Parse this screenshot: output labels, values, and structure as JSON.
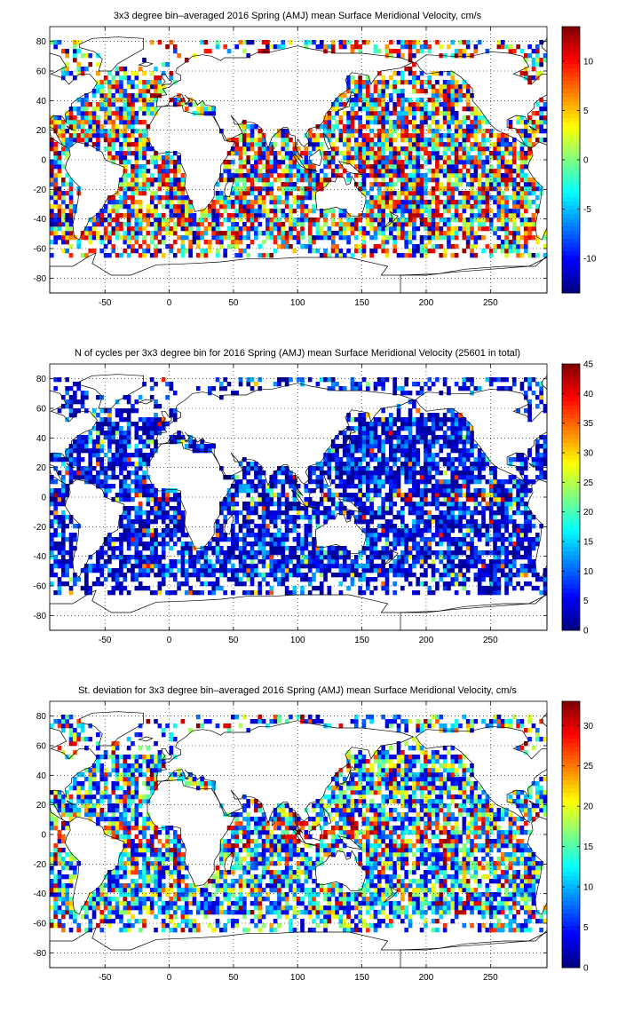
{
  "chart_data": [
    {
      "type": "heatmap",
      "title": "3x3 degree bin–averaged 2016 Spring (AMJ) mean Surface Meridional Velocity, cm/s",
      "xlim": [
        -93,
        294
      ],
      "ylim": [
        -90,
        90
      ],
      "x_ticks": [
        "-50",
        "0",
        "50",
        "100",
        "150",
        "200",
        "250"
      ],
      "x_tick_values": [
        -50,
        0,
        50,
        100,
        150,
        200,
        250
      ],
      "y_ticks": [
        "80",
        "60",
        "40",
        "20",
        "0",
        "-20",
        "-40",
        "-60",
        "-80"
      ],
      "y_tick_values": [
        80,
        60,
        40,
        20,
        0,
        -20,
        -40,
        -60,
        -80
      ],
      "grid": true,
      "colormap": "jet",
      "color_range": [
        -13.5,
        13.5
      ],
      "colorbar_ticks": [
        "10",
        "5",
        "0",
        "-5",
        "-10"
      ],
      "colorbar_tick_values": [
        10,
        5,
        0,
        -5,
        -10
      ],
      "bin_size_deg": 3,
      "mode": "signed"
    },
    {
      "type": "heatmap",
      "title": "N of cycles per 3x3 degree bin for 2016 Spring (AMJ) mean Surface Meridional Velocity (25601 in total)",
      "xlim": [
        -93,
        294
      ],
      "ylim": [
        -90,
        90
      ],
      "x_ticks": [
        "-50",
        "0",
        "50",
        "100",
        "150",
        "200",
        "250"
      ],
      "x_tick_values": [
        -50,
        0,
        50,
        100,
        150,
        200,
        250
      ],
      "y_ticks": [
        "80",
        "60",
        "40",
        "20",
        "0",
        "-20",
        "-40",
        "-60",
        "-80"
      ],
      "y_tick_values": [
        80,
        60,
        40,
        20,
        0,
        -20,
        -40,
        -60,
        -80
      ],
      "grid": true,
      "colormap": "jet",
      "color_range": [
        0,
        45
      ],
      "colorbar_ticks": [
        "45",
        "40",
        "35",
        "30",
        "25",
        "20",
        "15",
        "10",
        "5",
        "0"
      ],
      "colorbar_tick_values": [
        45,
        40,
        35,
        30,
        25,
        20,
        15,
        10,
        5,
        0
      ],
      "bin_size_deg": 3,
      "mode": "count"
    },
    {
      "type": "heatmap",
      "title": "St. deviation for 3x3 degree bin–averaged 2016 Spring (AMJ) mean Surface Meridional Velocity, cm/s",
      "xlim": [
        -93,
        294
      ],
      "ylim": [
        -90,
        90
      ],
      "x_ticks": [
        "-50",
        "0",
        "50",
        "100",
        "150",
        "200",
        "250"
      ],
      "x_tick_values": [
        -50,
        0,
        50,
        100,
        150,
        200,
        250
      ],
      "y_ticks": [
        "80",
        "60",
        "40",
        "20",
        "0",
        "-20",
        "-40",
        "-60",
        "-80"
      ],
      "y_tick_values": [
        80,
        60,
        40,
        20,
        0,
        -20,
        -40,
        -60,
        -80
      ],
      "grid": true,
      "colormap": "jet",
      "color_range": [
        0,
        33
      ],
      "colorbar_ticks": [
        "30",
        "25",
        "20",
        "15",
        "10",
        "5",
        "0"
      ],
      "colorbar_tick_values": [
        30,
        25,
        20,
        15,
        10,
        5,
        0
      ],
      "bin_size_deg": 3,
      "mode": "stdev"
    }
  ]
}
